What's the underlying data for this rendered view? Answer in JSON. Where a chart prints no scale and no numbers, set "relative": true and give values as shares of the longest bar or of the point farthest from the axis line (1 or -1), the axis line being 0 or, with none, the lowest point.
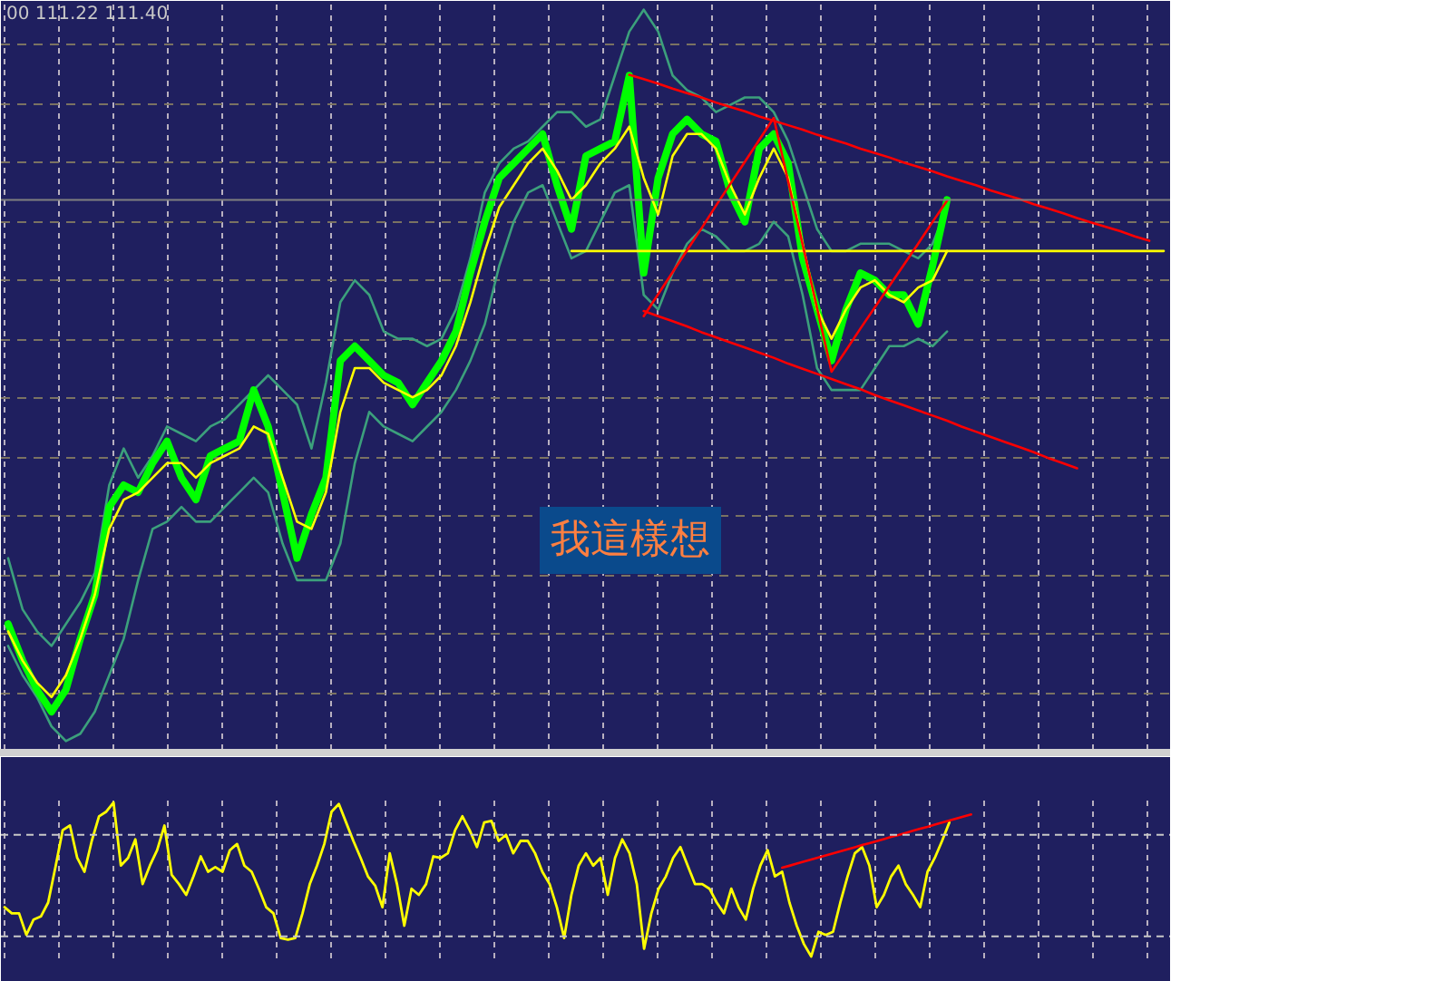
{
  "chart_data": [
    {
      "type": "line",
      "relative": true,
      "grid": true,
      "annotations": [
        "00 111.22 111.40",
        "我這樣想"
      ],
      "categories": [
        null,
        null,
        null,
        null,
        null,
        null,
        null,
        null,
        null,
        null,
        null,
        null,
        null,
        null,
        null,
        null,
        null,
        null,
        null,
        null,
        null,
        null,
        null,
        null,
        null,
        null,
        null,
        null,
        null,
        null,
        null,
        null,
        null,
        null,
        null,
        null,
        null,
        null,
        null,
        null,
        null,
        null,
        null,
        null,
        null,
        null,
        null,
        null,
        null,
        null,
        null,
        null,
        null,
        null,
        null,
        null,
        null,
        null,
        null,
        null,
        null,
        null,
        null,
        null,
        null,
        null,
        null,
        null,
        null,
        null,
        null,
        null,
        null,
        null,
        null,
        null,
        null,
        null,
        null,
        null,
        null
      ],
      "ref_lines": [
        {
          "axis": "y",
          "value": 0.74,
          "color": "#808080"
        }
      ],
      "series": [
        {
          "color": "#3ca07c",
          "values": [
            0.25,
            0.18,
            0.15,
            0.13,
            0.16,
            0.19,
            0.23,
            0.35,
            0.4,
            0.36,
            0.39,
            0.43,
            0.42,
            0.41,
            0.43,
            0.44,
            0.46,
            0.48,
            0.5,
            0.48,
            0.46,
            0.4,
            0.49,
            0.6,
            0.63,
            0.61,
            0.56,
            0.55,
            0.55,
            0.54,
            0.55,
            0.59,
            0.66,
            0.75,
            0.79,
            0.81,
            0.82,
            0.84,
            0.86,
            0.86,
            0.84,
            0.85,
            0.91,
            0.97,
            1.0,
            0.97,
            0.91,
            0.89,
            0.88,
            0.86,
            0.87,
            0.88,
            0.88,
            0.86,
            0.82,
            0.76,
            0.7,
            0.67,
            0.67,
            0.68,
            0.68,
            0.68,
            0.67,
            0.66,
            0.68,
            0.73,
            null,
            null,
            null,
            null,
            null,
            null,
            null,
            null,
            null,
            null,
            null,
            null,
            null,
            null,
            null
          ]
        },
        {
          "color": "#3ca07c",
          "values": [
            0.13,
            0.09,
            0.06,
            0.02,
            0,
            0.01,
            0.04,
            0.09,
            0.14,
            0.22,
            0.29,
            0.3,
            0.32,
            0.3,
            0.3,
            0.32,
            0.34,
            0.36,
            0.34,
            0.27,
            0.22,
            0.22,
            0.22,
            0.27,
            0.38,
            0.45,
            0.43,
            0.42,
            0.41,
            0.43,
            0.45,
            0.48,
            0.52,
            0.57,
            0.65,
            0.71,
            0.75,
            0.76,
            0.71,
            0.66,
            0.67,
            0.71,
            0.75,
            0.76,
            0.61,
            0.59,
            0.64,
            0.68,
            0.7,
            0.69,
            0.67,
            0.67,
            0.68,
            0.71,
            0.69,
            0.61,
            0.51,
            0.48,
            0.48,
            0.48,
            0.51,
            0.54,
            0.54,
            0.55,
            0.54,
            0.56,
            null,
            null,
            null,
            null,
            null,
            null,
            null,
            null,
            null,
            null,
            null,
            null,
            null,
            null,
            null
          ]
        },
        {
          "color": "#00ff00",
          "values": [
            0.16,
            0.11,
            0.07,
            0.04,
            0.07,
            0.14,
            0.2,
            0.32,
            0.35,
            0.34,
            0.38,
            0.41,
            0.36,
            0.33,
            0.39,
            0.4,
            0.41,
            0.48,
            0.43,
            0.34,
            0.25,
            0.31,
            0.36,
            0.52,
            0.54,
            0.52,
            0.5,
            0.49,
            0.46,
            0.49,
            0.52,
            0.56,
            0.64,
            0.71,
            0.77,
            0.79,
            0.81,
            0.83,
            0.76,
            0.7,
            0.8,
            0.81,
            0.82,
            0.91,
            0.64,
            0.77,
            0.83,
            0.85,
            0.83,
            0.82,
            0.75,
            0.71,
            0.81,
            0.83,
            0.79,
            0.66,
            0.59,
            0.52,
            0.59,
            0.64,
            0.63,
            0.61,
            0.61,
            0.57,
            0.65,
            0.74,
            null,
            null,
            null,
            null,
            null,
            null,
            null,
            null,
            null,
            null,
            null,
            null,
            null,
            null,
            null
          ]
        },
        {
          "color": "#ffff00",
          "values": [
            0.15,
            0.11,
            0.08,
            0.06,
            0.09,
            0.14,
            0.2,
            0.29,
            0.33,
            0.34,
            0.36,
            0.38,
            0.38,
            0.36,
            0.38,
            0.39,
            0.4,
            0.43,
            0.42,
            0.36,
            0.3,
            0.29,
            0.34,
            0.45,
            0.51,
            0.51,
            0.49,
            0.48,
            0.47,
            0.48,
            0.5,
            0.54,
            0.6,
            0.67,
            0.73,
            0.76,
            0.79,
            0.81,
            0.78,
            0.74,
            0.76,
            0.79,
            0.81,
            0.84,
            0.77,
            0.72,
            0.8,
            0.83,
            0.83,
            0.81,
            0.76,
            0.72,
            0.77,
            0.81,
            0.77,
            0.68,
            0.59,
            0.55,
            0.59,
            0.62,
            0.63,
            0.61,
            0.6,
            0.62,
            0.63,
            0.67,
            null,
            null,
            null,
            null,
            null,
            null,
            null,
            null,
            null,
            null,
            null,
            null,
            null,
            null,
            null
          ]
        },
        {
          "color": "#ffff00",
          "values": [
            null,
            null,
            null,
            null,
            null,
            null,
            null,
            null,
            null,
            null,
            null,
            null,
            null,
            null,
            null,
            null,
            null,
            null,
            null,
            null,
            null,
            null,
            null,
            null,
            null,
            null,
            null,
            null,
            null,
            null,
            null,
            null,
            null,
            null,
            null,
            null,
            null,
            null,
            null,
            0.67,
            0.67,
            0.67,
            0.67,
            0.67,
            0.67,
            0.67,
            0.67,
            0.67,
            0.67,
            0.67,
            0.67,
            0.67,
            0.67,
            0.67,
            0.67,
            0.67,
            0.67,
            0.67,
            0.67,
            0.67,
            0.67,
            0.67,
            0.67,
            0.67,
            0.67,
            0.67,
            0.67,
            0.67,
            0.67,
            0.67,
            0.67,
            0.67,
            0.67,
            0.67,
            0.67,
            0.67,
            0.67,
            0.67,
            0.67,
            0.67,
            0.67
          ]
        },
        {
          "color": "#ff0000",
          "values": [
            null,
            null,
            null,
            null,
            null,
            null,
            null,
            null,
            null,
            null,
            null,
            null,
            null,
            null,
            null,
            null,
            null,
            null,
            null,
            null,
            null,
            null,
            null,
            null,
            null,
            null,
            null,
            null,
            null,
            null,
            null,
            null,
            null,
            null,
            null,
            null,
            null,
            null,
            null,
            null,
            null,
            null,
            null,
            0.911,
            0.905,
            0.899,
            0.892,
            0.886,
            0.88,
            0.873,
            0.867,
            0.861,
            0.854,
            0.848,
            0.842,
            0.836,
            0.829,
            0.823,
            0.817,
            0.81,
            0.804,
            0.798,
            0.791,
            0.785,
            0.779,
            0.772,
            0.766,
            0.76,
            0.753,
            0.747,
            0.741,
            0.734,
            0.728,
            0.722,
            0.715,
            0.709,
            0.703,
            0.697,
            0.69,
            0.684,
            null
          ]
        },
        {
          "color": "#ff0000",
          "values": [
            null,
            null,
            null,
            null,
            null,
            null,
            null,
            null,
            null,
            null,
            null,
            null,
            null,
            null,
            null,
            null,
            null,
            null,
            null,
            null,
            null,
            null,
            null,
            null,
            null,
            null,
            null,
            null,
            null,
            null,
            null,
            null,
            null,
            null,
            null,
            null,
            null,
            null,
            null,
            null,
            null,
            null,
            null,
            null,
            0.588,
            0.581,
            0.574,
            0.567,
            0.559,
            0.552,
            0.545,
            0.538,
            0.531,
            0.524,
            0.516,
            0.509,
            0.502,
            0.495,
            0.488,
            0.481,
            0.473,
            0.466,
            0.459,
            0.452,
            0.445,
            0.438,
            0.43,
            0.423,
            0.416,
            0.409,
            0.402,
            0.395,
            0.387,
            0.38,
            0.373,
            null,
            null,
            null,
            null,
            null,
            null
          ]
        },
        {
          "color": "#ff0000",
          "values": [
            null,
            null,
            null,
            null,
            null,
            null,
            null,
            null,
            null,
            null,
            null,
            null,
            null,
            null,
            null,
            null,
            null,
            null,
            null,
            null,
            null,
            null,
            null,
            null,
            null,
            null,
            null,
            null,
            null,
            null,
            null,
            null,
            null,
            null,
            null,
            null,
            null,
            null,
            null,
            null,
            null,
            null,
            null,
            null,
            0.581,
            0.611,
            0.641,
            0.671,
            0.701,
            0.732,
            0.762,
            0.792,
            0.822,
            0.852,
            0.765,
            0.679,
            0.592,
            0.505,
            0.534,
            0.564,
            0.593,
            0.622,
            0.651,
            0.68,
            0.71,
            0.739,
            null,
            null,
            null,
            null,
            null,
            null,
            null,
            null,
            null,
            null,
            null,
            null,
            null,
            null,
            null
          ]
        }
      ]
    },
    {
      "type": "line",
      "relative": true,
      "grid": "x",
      "categories": [
        null,
        null,
        null,
        null,
        null,
        null,
        null,
        null,
        null,
        null,
        null,
        null,
        null,
        null,
        null,
        null,
        null,
        null,
        null,
        null,
        null,
        null,
        null,
        null,
        null,
        null,
        null,
        null,
        null,
        null,
        null,
        null,
        null,
        null,
        null,
        null,
        null,
        null,
        null,
        null,
        null,
        null,
        null,
        null,
        null,
        null,
        null,
        null,
        null,
        null,
        null,
        null,
        null,
        null,
        null,
        null,
        null,
        null,
        null,
        null,
        null,
        null,
        null,
        null,
        null,
        null,
        null,
        null,
        null,
        null,
        null,
        null,
        null,
        null,
        null,
        null,
        null,
        null,
        null,
        null,
        null,
        null,
        null,
        null,
        null,
        null,
        null,
        null,
        null,
        null,
        null,
        null,
        null,
        null,
        null,
        null,
        null,
        null,
        null,
        null,
        null,
        null,
        null,
        null,
        null,
        null,
        null,
        null,
        null,
        null,
        null,
        null,
        null,
        null,
        null,
        null,
        null,
        null,
        null,
        null,
        null,
        null,
        null,
        null,
        null,
        null,
        null,
        null,
        null,
        null,
        null,
        null,
        null,
        null,
        null,
        null,
        null,
        null,
        null,
        null,
        null,
        null,
        null,
        null,
        null,
        null,
        null,
        null,
        null,
        null,
        null,
        null,
        null,
        null,
        null,
        null,
        null,
        null,
        null,
        null,
        null
      ],
      "ref_lines": [
        {
          "axis": "y",
          "value": 0.79,
          "color": "#c8c8c8",
          "line_style": "dashed"
        },
        {
          "axis": "y",
          "value": 0.13,
          "color": "#c8c8c8",
          "line_style": "dashed"
        }
      ],
      "series": [
        {
          "color": "#ffff00",
          "values": [
            0.32,
            0.28,
            0.28,
            0.14,
            0.24,
            0.26,
            0.35,
            0.58,
            0.82,
            0.85,
            0.64,
            0.55,
            0.75,
            0.91,
            0.94,
            1.0,
            0.59,
            0.64,
            0.76,
            0.47,
            0.59,
            0.69,
            0.85,
            0.53,
            0.47,
            0.4,
            0.52,
            0.65,
            0.55,
            0.58,
            0.55,
            0.69,
            0.73,
            0.59,
            0.55,
            0.44,
            0.32,
            0.28,
            0.12,
            0.11,
            0.12,
            0.28,
            0.47,
            0.59,
            0.73,
            0.94,
            0.99,
            0.87,
            0.75,
            0.64,
            0.52,
            0.46,
            0.32,
            0.67,
            0.47,
            0.2,
            0.44,
            0.4,
            0.47,
            0.65,
            0.64,
            0.67,
            0.82,
            0.91,
            0.82,
            0.71,
            0.87,
            0.88,
            0.75,
            0.79,
            0.67,
            0.75,
            0.75,
            0.67,
            0.55,
            0.47,
            0.32,
            0.12,
            0.4,
            0.59,
            0.67,
            0.59,
            0.64,
            0.4,
            0.64,
            0.76,
            0.67,
            0.47,
            0.05,
            0.28,
            0.44,
            0.52,
            0.64,
            0.71,
            0.59,
            0.47,
            0.47,
            0.44,
            0.35,
            0.28,
            0.44,
            0.32,
            0.24,
            0.44,
            0.59,
            0.69,
            0.52,
            0.55,
            0.35,
            0.2,
            0.08,
            0,
            0.16,
            0.14,
            0.16,
            0.35,
            0.52,
            0.67,
            0.71,
            0.59,
            0.32,
            0.4,
            0.52,
            0.59,
            0.47,
            0.4,
            0.32,
            0.55,
            0.64,
            0.75,
            0.87,
            null,
            null,
            null,
            null,
            null,
            null,
            null,
            null,
            null,
            null,
            null,
            null,
            null,
            null,
            null,
            null,
            null,
            null,
            null,
            null,
            null,
            null,
            null,
            null,
            null,
            null,
            null,
            null,
            null,
            null
          ]
        },
        {
          "color": "#ff0000",
          "values": [
            null,
            null,
            null,
            null,
            null,
            null,
            null,
            null,
            null,
            null,
            null,
            null,
            null,
            null,
            null,
            null,
            null,
            null,
            null,
            null,
            null,
            null,
            null,
            null,
            null,
            null,
            null,
            null,
            null,
            null,
            null,
            null,
            null,
            null,
            null,
            null,
            null,
            null,
            null,
            null,
            null,
            null,
            null,
            null,
            null,
            null,
            null,
            null,
            null,
            null,
            null,
            null,
            null,
            null,
            null,
            null,
            null,
            null,
            null,
            null,
            null,
            null,
            null,
            null,
            null,
            null,
            null,
            null,
            null,
            null,
            null,
            null,
            null,
            null,
            null,
            null,
            null,
            null,
            null,
            null,
            null,
            null,
            null,
            null,
            null,
            null,
            null,
            null,
            null,
            null,
            null,
            null,
            null,
            null,
            null,
            null,
            null,
            null,
            null,
            null,
            null,
            null,
            null,
            null,
            null,
            null,
            null,
            0.576,
            0.589,
            0.603,
            0.616,
            0.629,
            0.643,
            0.656,
            0.669,
            0.683,
            0.696,
            0.709,
            0.723,
            0.736,
            0.749,
            0.762,
            0.776,
            0.789,
            0.802,
            0.816,
            0.829,
            0.842,
            0.856,
            0.869,
            0.882,
            0.896,
            0.909,
            0.922,
            null,
            null,
            null,
            null,
            null,
            null,
            null,
            null,
            null,
            null,
            null,
            null,
            null,
            null,
            null,
            null,
            null,
            null,
            null,
            null,
            null,
            null,
            null,
            null,
            null,
            null,
            null
          ]
        }
      ]
    }
  ]
}
